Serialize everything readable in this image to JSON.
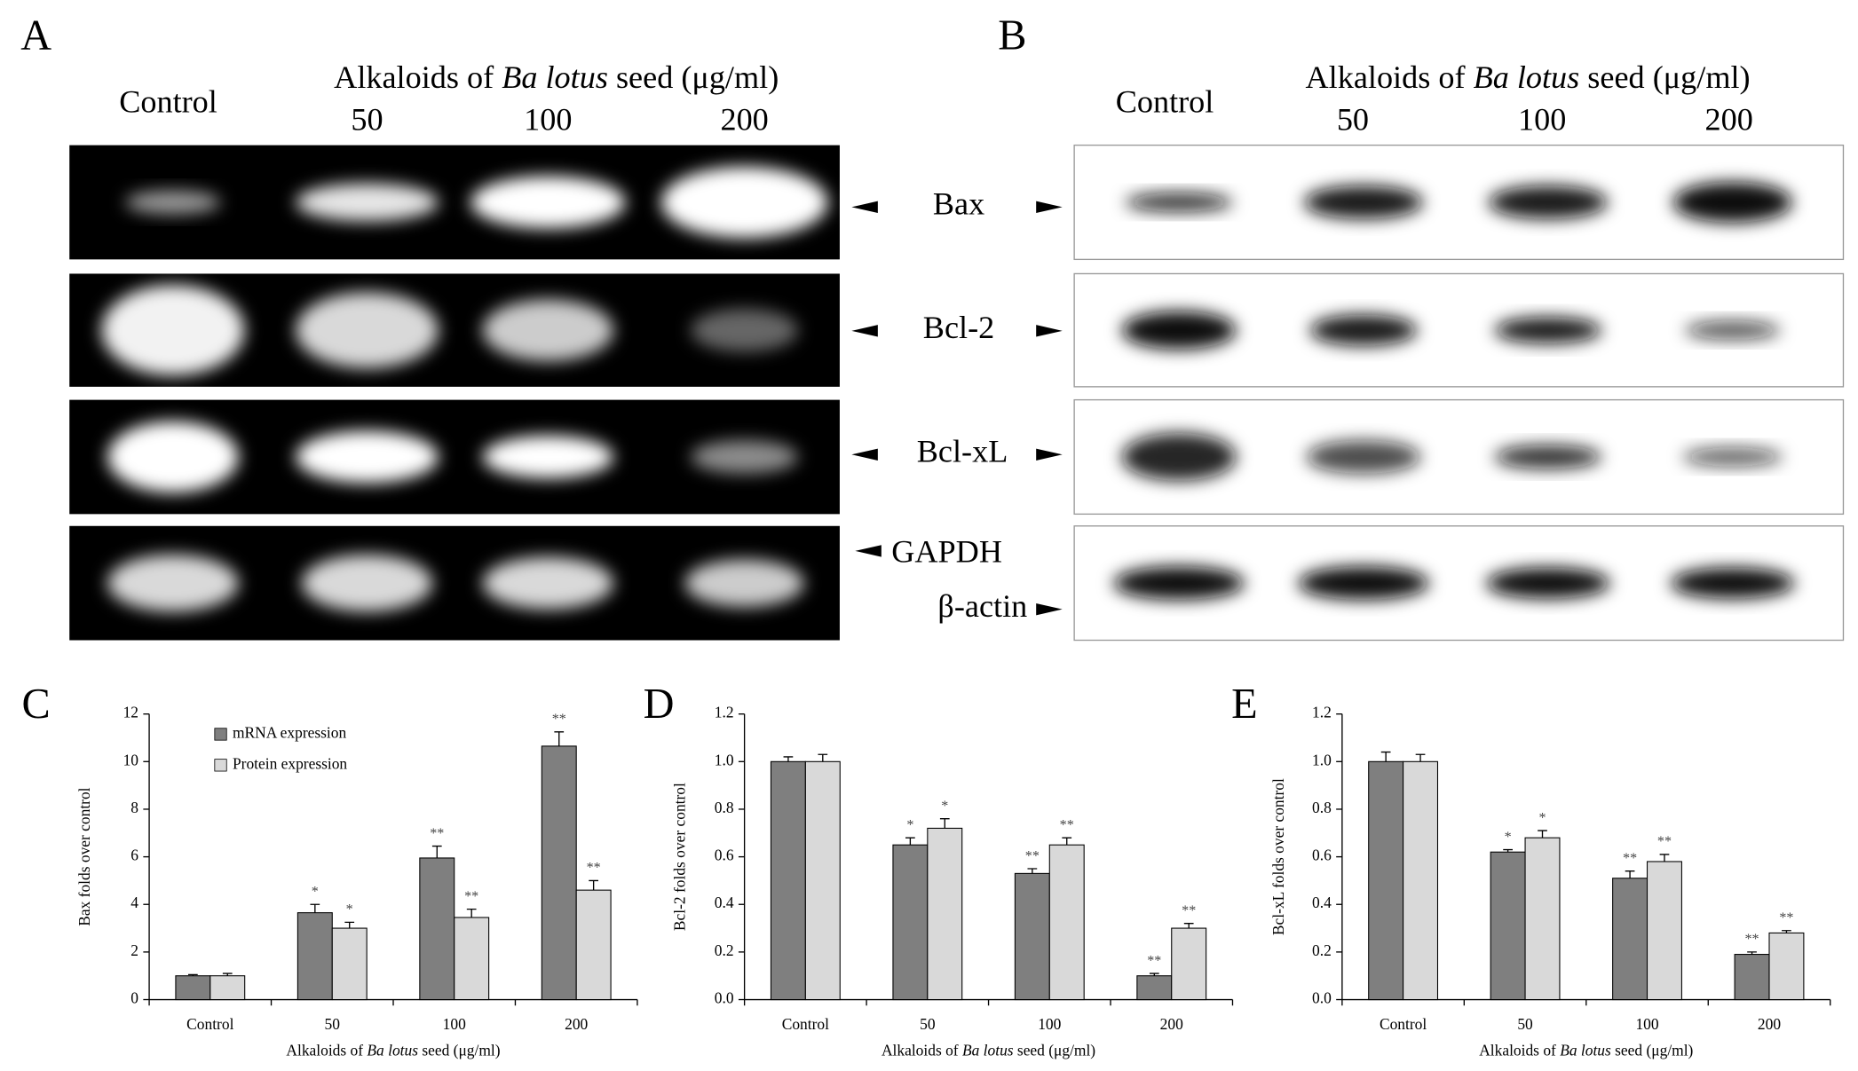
{
  "panels": [
    {
      "letter": "A",
      "control": "Control",
      "header": [
        "Alkaloids of ",
        "Ba lotus",
        " seed (μg/ml)"
      ],
      "doses": [
        "50",
        "100",
        "200"
      ]
    },
    {
      "letter": "B",
      "control": "Control",
      "header": [
        "Alkaloids of ",
        "Ba lotus",
        " seed (μg/ml)"
      ],
      "doses": [
        "50",
        "100",
        "200"
      ]
    }
  ],
  "band_labels": [
    "Bax",
    "Bcl-2",
    "Bcl-xL",
    "GAPDH",
    "β-actin"
  ],
  "chart_data": [
    {
      "type": "bar",
      "letter": "C",
      "ylabel": "Bax folds over control",
      "xlabel": [
        "Alkaloids of ",
        "Ba lotus",
        " seed (μg/ml)"
      ],
      "categories": [
        "Control",
        "50",
        "100",
        "200"
      ],
      "legend": "upper left",
      "ylim": [
        0,
        12
      ],
      "yticks": [
        0,
        2,
        4,
        6,
        8,
        10,
        12
      ],
      "series": [
        {
          "name": "mRNA expression",
          "color": "#7f7f7f",
          "values": [
            1.0,
            3.65,
            5.95,
            10.65
          ],
          "errors": [
            0.05,
            0.35,
            0.5,
            0.6
          ],
          "significance": [
            null,
            "*",
            "**",
            "**"
          ]
        },
        {
          "name": "Protein expression",
          "color": "#d9d9d9",
          "values": [
            1.0,
            3.0,
            3.45,
            4.6
          ],
          "errors": [
            0.1,
            0.25,
            0.35,
            0.4
          ],
          "significance": [
            null,
            "*",
            "**",
            "**"
          ]
        }
      ]
    },
    {
      "type": "bar",
      "letter": "D",
      "ylabel": "Bcl-2 folds over control",
      "xlabel": [
        "Alkaloids of ",
        "Ba lotus",
        " seed (μg/ml)"
      ],
      "categories": [
        "Control",
        "50",
        "100",
        "200"
      ],
      "ylim": [
        0,
        1.2
      ],
      "yticks": [
        {
          "value": 0,
          "label": "0.0"
        },
        0.2,
        0.4,
        0.6,
        0.8,
        {
          "value": 1,
          "label": "1.0"
        },
        1.2
      ],
      "series": [
        {
          "color": "#7f7f7f",
          "values": [
            1.0,
            0.65,
            0.53,
            0.1
          ],
          "errors": [
            0.02,
            0.03,
            0.02,
            0.01
          ],
          "significance": [
            null,
            "*",
            "**",
            "**"
          ]
        },
        {
          "color": "#d9d9d9",
          "values": [
            1.0,
            0.72,
            0.65,
            0.3
          ],
          "errors": [
            0.03,
            0.04,
            0.03,
            0.02
          ],
          "significance": [
            null,
            "*",
            "**",
            "**"
          ]
        }
      ]
    },
    {
      "type": "bar",
      "letter": "E",
      "ylabel": "Bcl-xL folds over control",
      "xlabel": [
        "Alkaloids of ",
        "Ba lotus",
        " seed (μg/ml)"
      ],
      "categories": [
        "Control",
        "50",
        "100",
        "200"
      ],
      "ylim": [
        0,
        1.2
      ],
      "yticks": [
        {
          "value": 0,
          "label": "0.0"
        },
        0.2,
        0.4,
        0.6,
        0.8,
        {
          "value": 1,
          "label": "1.0"
        },
        1.2
      ],
      "series": [
        {
          "color": "#7f7f7f",
          "values": [
            1.0,
            0.62,
            0.51,
            0.19
          ],
          "errors": [
            0.04,
            0.01,
            0.03,
            0.01
          ],
          "significance": [
            null,
            "*",
            "**",
            "**"
          ]
        },
        {
          "color": "#d9d9d9",
          "values": [
            1.0,
            0.68,
            0.58,
            0.28
          ],
          "errors": [
            0.03,
            0.03,
            0.03,
            0.01
          ],
          "significance": [
            null,
            "*",
            "**",
            "**"
          ]
        }
      ]
    }
  ]
}
